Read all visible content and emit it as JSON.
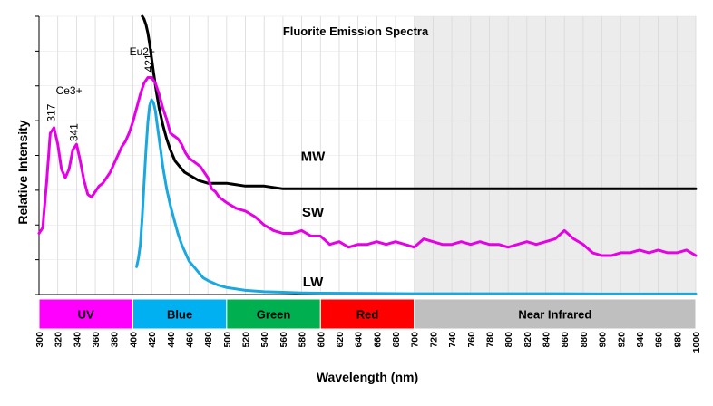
{
  "chart_data": {
    "type": "line",
    "title": "Fluorite Emission Spectra",
    "xlabel": "Wavelength (nm)",
    "ylabel": "Relative Intensity",
    "xlim": [
      300,
      1000
    ],
    "ylim": [
      0,
      100
    ],
    "x_ticks": [
      300,
      320,
      340,
      360,
      380,
      400,
      420,
      440,
      460,
      480,
      500,
      520,
      540,
      560,
      580,
      600,
      620,
      640,
      660,
      680,
      700,
      720,
      740,
      760,
      780,
      800,
      820,
      840,
      860,
      880,
      900,
      920,
      940,
      960,
      980,
      1000
    ],
    "y_tick_labels": false,
    "grid": true,
    "shaded_region": {
      "x_start": 700,
      "x_end": 1000,
      "color": "#ececec"
    },
    "series": [
      {
        "name": "MW",
        "color": "#000000",
        "x": [
          410,
          412,
          414,
          416,
          418,
          420,
          422,
          425,
          428,
          432,
          436,
          440,
          445,
          450,
          455,
          460,
          470,
          480,
          490,
          500,
          520,
          540,
          560,
          580,
          600,
          620,
          640,
          660,
          680,
          700,
          720,
          740,
          760,
          780,
          800,
          820,
          840,
          860,
          880,
          900,
          920,
          940,
          960,
          980,
          1000
        ],
        "values": [
          100,
          99,
          97,
          94,
          90,
          85,
          80,
          73,
          67,
          61,
          56,
          52,
          48,
          46,
          44,
          43,
          41,
          40,
          40,
          40,
          39,
          39,
          38,
          38,
          38,
          38,
          38,
          38,
          38,
          38,
          38,
          38,
          38,
          38,
          38,
          38,
          38,
          38,
          38,
          38,
          38,
          38,
          38,
          38,
          38
        ]
      },
      {
        "name": "SW",
        "color": "#e600e6",
        "x": [
          300,
          304,
          308,
          312,
          316,
          320,
          324,
          328,
          332,
          336,
          340,
          344,
          348,
          352,
          356,
          360,
          364,
          368,
          372,
          376,
          380,
          384,
          388,
          392,
          396,
          400,
          404,
          408,
          412,
          416,
          420,
          424,
          428,
          432,
          436,
          440,
          444,
          448,
          452,
          456,
          460,
          464,
          468,
          472,
          476,
          480,
          484,
          488,
          492,
          496,
          500,
          510,
          520,
          530,
          540,
          550,
          560,
          570,
          580,
          590,
          600,
          610,
          620,
          630,
          640,
          650,
          660,
          670,
          680,
          690,
          700,
          710,
          720,
          730,
          740,
          750,
          760,
          770,
          780,
          790,
          800,
          810,
          820,
          830,
          840,
          850,
          860,
          870,
          880,
          890,
          900,
          910,
          920,
          930,
          940,
          950,
          960,
          970,
          980,
          990,
          1000
        ],
        "values": [
          22,
          24,
          40,
          58,
          60,
          54,
          45,
          42,
          45,
          52,
          54,
          48,
          41,
          36,
          35,
          37,
          39,
          40,
          42,
          44,
          47,
          50,
          53,
          55,
          58,
          62,
          67,
          72,
          76,
          78,
          78,
          76,
          72,
          67,
          63,
          58,
          57,
          56,
          54,
          51,
          49,
          48,
          47,
          46,
          44,
          42,
          38,
          37,
          35,
          34,
          33,
          31,
          30,
          28,
          25,
          23,
          22,
          22,
          23,
          21,
          21,
          18,
          19,
          17,
          18,
          18,
          19,
          18,
          19,
          18,
          17,
          20,
          19,
          18,
          18,
          19,
          18,
          19,
          18,
          18,
          17,
          18,
          19,
          18,
          19,
          20,
          23,
          20,
          18,
          15,
          14,
          14,
          15,
          15,
          16,
          15,
          16,
          15,
          15,
          16,
          14
        ]
      },
      {
        "name": "LW",
        "color": "#1aa8e0",
        "x": [
          404,
          406,
          408,
          410,
          412,
          414,
          416,
          418,
          420,
          422,
          424,
          426,
          428,
          430,
          432,
          434,
          436,
          440,
          444,
          448,
          452,
          456,
          460,
          465,
          470,
          475,
          480,
          490,
          500,
          520,
          540,
          560,
          580,
          600,
          650,
          700,
          750,
          800,
          850,
          900,
          950,
          1000
        ],
        "values": [
          10,
          13,
          18,
          28,
          40,
          52,
          62,
          68,
          70,
          69,
          66,
          61,
          56,
          51,
          46,
          42,
          38,
          32,
          27,
          22,
          18,
          15,
          12,
          10,
          8,
          6,
          5,
          3.5,
          2.5,
          1.5,
          1,
          0.8,
          0.6,
          0.5,
          0.4,
          0.3,
          0.3,
          0.3,
          0.3,
          0.2,
          0.2,
          0.2
        ]
      }
    ],
    "series_labels": [
      {
        "text": "MW",
        "x": 592,
        "y": 48
      },
      {
        "text": "SW",
        "x": 592,
        "y": 28
      },
      {
        "text": "LW",
        "x": 592,
        "y": 3
      }
    ],
    "peak_annotations": [
      {
        "label": "317",
        "x": 317,
        "y": 62,
        "rotate": true
      },
      {
        "label": "341",
        "x": 341,
        "y": 55,
        "rotate": true
      },
      {
        "label": "Ce3+",
        "x": 332,
        "y": 72,
        "rotate": false
      },
      {
        "label": "421",
        "x": 421,
        "y": 80,
        "rotate": true
      },
      {
        "label": "Eu2+",
        "x": 410,
        "y": 86,
        "rotate": false
      }
    ],
    "bands": [
      {
        "label": "UV",
        "start": 300,
        "end": 400,
        "color": "#ff00ff",
        "text_color": "#000000"
      },
      {
        "label": "Blue",
        "start": 400,
        "end": 500,
        "color": "#00b0f0",
        "text_color": "#000000"
      },
      {
        "label": "Green",
        "start": 500,
        "end": 600,
        "color": "#00b050",
        "text_color": "#000000"
      },
      {
        "label": "Red",
        "start": 600,
        "end": 700,
        "color": "#ff0000",
        "text_color": "#000000"
      },
      {
        "label": "Near Infrared",
        "start": 700,
        "end": 1000,
        "color": "#bfbfbf",
        "text_color": "#000000"
      }
    ]
  }
}
